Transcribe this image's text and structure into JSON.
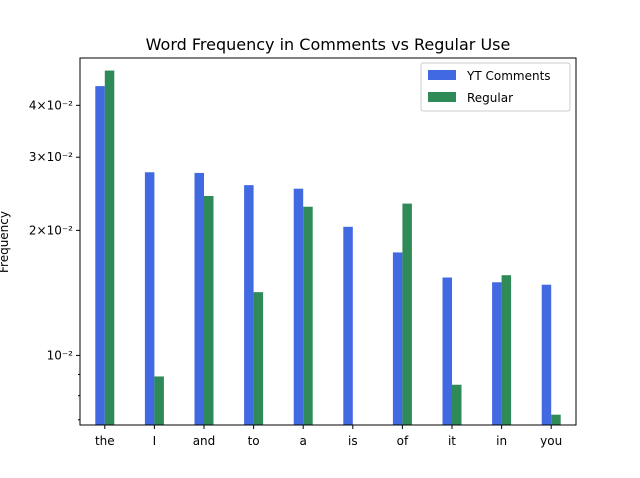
{
  "chart_data": {
    "type": "bar",
    "title": "Word Frequency in Comments vs Regular Use",
    "xlabel": "",
    "ylabel": "Frequency",
    "yscale": "log",
    "ylim": [
      0.0068,
      0.052
    ],
    "categories": [
      "the",
      "I",
      "and",
      "to",
      "a",
      "is",
      "of",
      "it",
      "in",
      "you"
    ],
    "series": [
      {
        "name": "YT Comments",
        "color": "#4169e1",
        "values": [
          0.0445,
          0.0276,
          0.0275,
          0.0257,
          0.0252,
          0.0204,
          0.0177,
          0.0154,
          0.015,
          0.0148
        ]
      },
      {
        "name": "Regular",
        "color": "#2e8b57",
        "values": [
          0.0485,
          0.0089,
          0.0242,
          0.0142,
          0.0228,
          null,
          0.0232,
          0.0085,
          0.0156,
          0.0072
        ]
      }
    ],
    "y_ticks": [
      {
        "value": 0.01,
        "label": "10⁻²"
      },
      {
        "value": 0.02,
        "label": "2×10⁻²"
      },
      {
        "value": 0.03,
        "label": "3×10⁻²"
      },
      {
        "value": 0.04,
        "label": "4×10⁻²"
      }
    ],
    "y_minor_ticks": [
      0.007,
      0.008,
      0.009
    ],
    "legend_position": "top-right",
    "grid": false
  }
}
